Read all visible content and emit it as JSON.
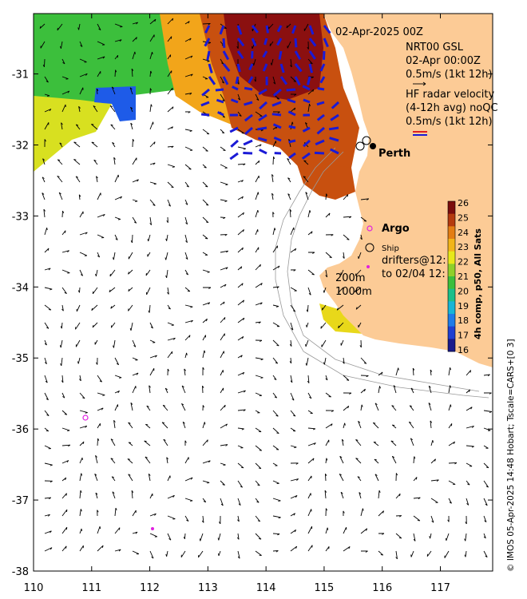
{
  "title": {
    "datetime": "02-Apr-2025 00Z",
    "model_line1": "NRT00 GSL",
    "model_line2": "02-Apr 00:00Z",
    "model_scale": "0.5m/s (1kt 12h)",
    "radar_line1": "HF radar velocity",
    "radar_line2": "(4-12h avg) noQC",
    "radar_scale": "0.5m/s (1kt 12h)"
  },
  "place_label": "Perth",
  "legend": {
    "argo": "Argo",
    "ship": "Ship",
    "drifters_line1": "drifters@12:",
    "drifters_line2": "to 02/04 12:",
    "contour_200": "200m",
    "contour_1000": "1000m"
  },
  "colorbar": {
    "title": "4h comp, p50, All Sats",
    "ticks": [
      "26",
      "25",
      "24",
      "23",
      "22",
      "21",
      "20",
      "19",
      "18",
      "17",
      "16"
    ],
    "min": 16,
    "max": 26,
    "colors": [
      "#1a1a8c",
      "#1f3fd1",
      "#1e7be8",
      "#17b5d6",
      "#1bbf8a",
      "#3cbf3c",
      "#8fd02a",
      "#e8e81a",
      "#f2b51a",
      "#e37d14",
      "#b53a0e",
      "#7a0d0d"
    ]
  },
  "axes": {
    "x_ticks": [
      "110",
      "111",
      "112",
      "113",
      "114",
      "115",
      "116",
      "117"
    ],
    "y_ticks": [
      "-31",
      "-32",
      "-33",
      "-34",
      "-35",
      "-36",
      "-37",
      "-38"
    ],
    "xlim": [
      110,
      117.9
    ],
    "ylim": [
      -38,
      -30.15
    ]
  },
  "credit": "© IMOS 05-Apr-2025 14:48 Hobart; Tscale=CARS+[0 3]",
  "colors": {
    "land": "#fccb96",
    "sst_warm": "#b5400f",
    "sst_hot": "#8b1010",
    "radar_arrow": "#1a1ad6",
    "drifter": "#e020e0"
  }
}
